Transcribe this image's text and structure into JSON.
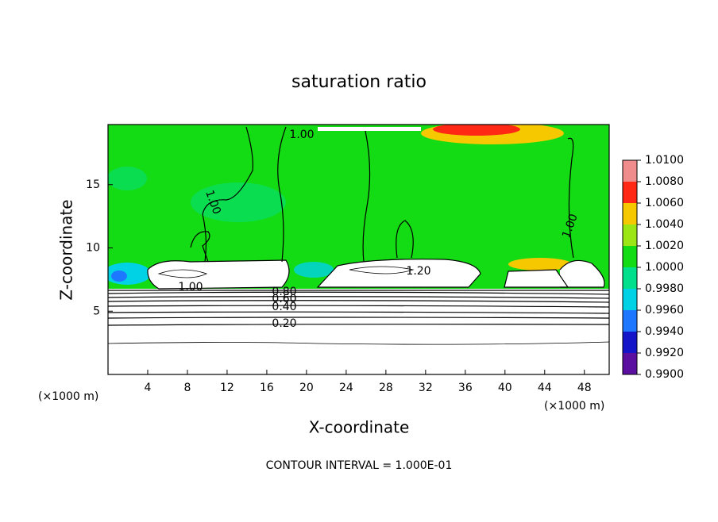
{
  "chart_data": {
    "type": "contour",
    "title": "saturation ratio",
    "x_label": "X-coordinate",
    "y_label": "Z-coordinate",
    "x_unit": "(×1000 m)",
    "xlim": [
      0,
      50.5
    ],
    "ylim": [
      0,
      19.75
    ],
    "xticks": [
      4,
      8,
      12,
      16,
      20,
      24,
      28,
      32,
      36,
      40,
      44,
      48
    ],
    "yticks": [
      5,
      10,
      15
    ],
    "colorbar": {
      "ticks": [
        {
          "value": 0.99,
          "label": "0.9900"
        },
        {
          "value": 0.992,
          "label": "0.9920"
        },
        {
          "value": 0.994,
          "label": "0.9940"
        },
        {
          "value": 0.996,
          "label": "0.9960"
        },
        {
          "value": 0.998,
          "label": "0.9980"
        },
        {
          "value": 1.0,
          "label": "1.0000"
        },
        {
          "value": 1.002,
          "label": "1.0020"
        },
        {
          "value": 1.004,
          "label": "1.0040"
        },
        {
          "value": 1.006,
          "label": "1.0060"
        },
        {
          "value": 1.008,
          "label": "1.0080"
        },
        {
          "value": 1.01,
          "label": "1.0100"
        }
      ],
      "colors": [
        "#5a0fa0",
        "#1414c8",
        "#1e78ff",
        "#00d2e6",
        "#00e08c",
        "#14dc14",
        "#9be614",
        "#f5c800",
        "#ff2814",
        "#f08c8c"
      ]
    },
    "contour_labels": [
      {
        "value": 1.0,
        "label": "1.00"
      },
      {
        "value": 1.0,
        "label": "1.00"
      },
      {
        "value": 1.0,
        "label": "1.00"
      },
      {
        "value": 1.0,
        "label": "1.00"
      },
      {
        "value": 1.2,
        "label": "1.20"
      },
      {
        "value": 0.8,
        "label": "0.80"
      },
      {
        "value": 0.6,
        "label": "0.60"
      },
      {
        "value": 0.4,
        "label": "0.40"
      },
      {
        "value": 0.2,
        "label": "0.20"
      }
    ],
    "note": "CONTOUR INTERVAL = 1.000E-01"
  }
}
